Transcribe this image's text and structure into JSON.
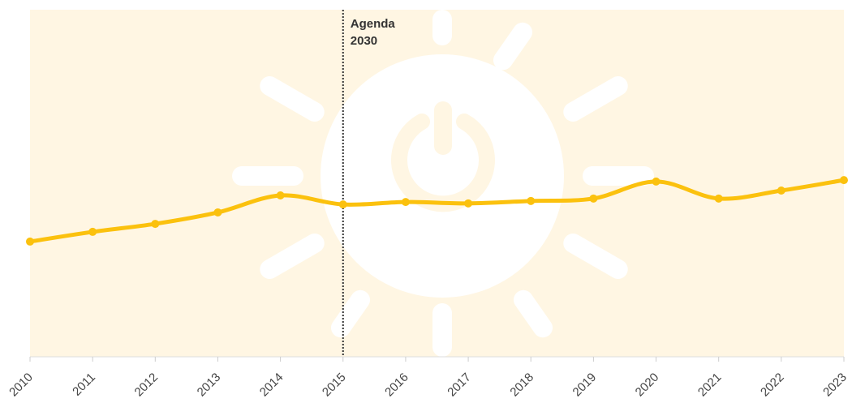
{
  "chart_data": {
    "type": "line",
    "x": [
      2010,
      2011,
      2012,
      2013,
      2014,
      2015,
      2016,
      2017,
      2018,
      2019,
      2020,
      2021,
      2022,
      2023
    ],
    "series": [
      {
        "color": "#fbc10e",
        "values": [
          33.2,
          36.0,
          38.3,
          41.6,
          46.5,
          43.9,
          44.6,
          44.2,
          44.9,
          45.6,
          50.5,
          45.6,
          47.9,
          50.9
        ]
      }
    ],
    "xlim": [
      2010,
      2023
    ],
    "xticks": [
      2010,
      2011,
      2012,
      2013,
      2014,
      2015,
      2016,
      2017,
      2018,
      2019,
      2020,
      2021,
      2022,
      2023
    ],
    "ylim": [
      0,
      100
    ],
    "annotations": [
      {
        "x": 2015,
        "text": [
          "Agenda",
          "2030"
        ]
      }
    ]
  }
}
